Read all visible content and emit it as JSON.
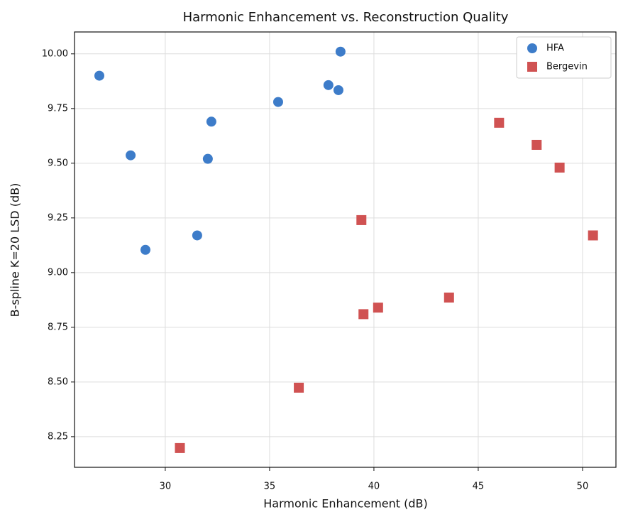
{
  "chart_data": {
    "type": "scatter",
    "title": "Harmonic Enhancement vs. Reconstruction Quality",
    "x_label": "Harmonic Enhancement (dB)",
    "y_label": "B-spline K=20 LSD (dB)",
    "xlim": [
      25.65,
      51.6
    ],
    "ylim": [
      8.11,
      10.1
    ],
    "xticks": [
      30,
      35,
      40,
      45,
      50
    ],
    "yticks": [
      {
        "value": 8.25,
        "label": "8.25"
      },
      {
        "value": 8.5,
        "label": "8.50"
      },
      {
        "value": 8.75,
        "label": "8.75"
      },
      {
        "value": 9,
        "label": "9.00"
      },
      {
        "value": 9.25,
        "label": "9.25"
      },
      {
        "value": 9.5,
        "label": "9.50"
      },
      {
        "value": 9.75,
        "label": "9.75"
      },
      {
        "value": 10,
        "label": "10.00"
      }
    ],
    "grid": true,
    "legend": "upper right",
    "series": [
      {
        "name": "HFA",
        "color": "#3d7cc9",
        "marker": "circle",
        "x": [
          26.84,
          28.34,
          29.05,
          31.53,
          32.04,
          32.21,
          35.41,
          37.82,
          38.3,
          38.4
        ],
        "values": [
          9.9,
          9.536,
          9.104,
          9.17,
          9.52,
          9.69,
          9.78,
          9.857,
          9.834,
          10.01
        ]
      },
      {
        "name": "Bergevin",
        "color": "#d05252",
        "marker": "square",
        "x": [
          30.7,
          36.4,
          39.4,
          39.5,
          40.2,
          43.6,
          46.0,
          47.8,
          48.9,
          50.5
        ],
        "values": [
          8.198,
          8.474,
          9.24,
          8.81,
          8.84,
          8.886,
          9.685,
          9.584,
          9.48,
          9.17
        ]
      }
    ]
  }
}
